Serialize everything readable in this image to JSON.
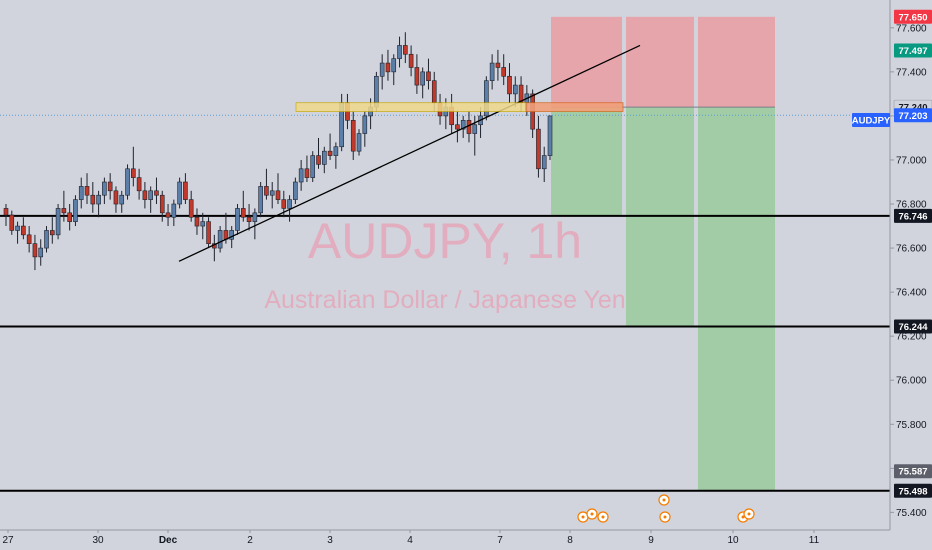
{
  "watermark": {
    "symbol": "AUDJPY, 1h",
    "description": "Australian Dollar / Japanese Yen"
  },
  "symbol_badge": "AUDJPY",
  "colors": {
    "background": "#d1d4dc",
    "up_candle": "#5b7fa8",
    "down_candle": "#c0392b",
    "stop_zone": "#e8a0a4",
    "target_zone": "#9ccb9f",
    "symbol_badge": "#2962ff",
    "current_price_line": "#5b9bd5"
  },
  "chart_data": {
    "type": "candlestick",
    "symbol": "AUDJPY",
    "timeframe": "1h",
    "y_range": [
      75.32,
      77.69
    ],
    "y_ticks": [
      "75.400",
      "75.600",
      "75.800",
      "76.000",
      "76.200",
      "76.400",
      "76.600",
      "76.800",
      "77.000",
      "77.200",
      "77.400",
      "77.600"
    ],
    "x_ticks": [
      "27",
      "30",
      "Dec",
      "2",
      "3",
      "4",
      "7",
      "8",
      "9",
      "10",
      "11"
    ],
    "horizontal_levels": [
      76.746,
      76.244,
      75.498
    ],
    "trendline": {
      "from": {
        "date": "1 Dec",
        "price": 76.54
      },
      "to": {
        "date": "8 Dec",
        "price": 77.52
      }
    },
    "resistance_zone": {
      "price_from": 77.22,
      "price_to": 77.26,
      "from_date": "2 Dec",
      "to_date": "8 Dec"
    },
    "short_positions": [
      {
        "entry": 77.24,
        "stop": 77.65,
        "target": 76.746
      },
      {
        "entry": 77.24,
        "stop": 77.65,
        "target": 76.244
      },
      {
        "entry": 77.24,
        "stop": 77.65,
        "target": 75.498
      }
    ],
    "price_labels": [
      {
        "label": "77.650",
        "price": 77.65,
        "style": "red"
      },
      {
        "label": "77.497",
        "price": 77.497,
        "style": "green"
      },
      {
        "label": "77.240",
        "price": 77.24,
        "style": "plain"
      },
      {
        "label": "77.203",
        "price": 77.203,
        "style": "blue"
      },
      {
        "label": "76.746",
        "price": 76.746,
        "style": "black"
      },
      {
        "label": "76.244",
        "price": 76.244,
        "style": "black"
      },
      {
        "label": "75.587",
        "price": 75.587,
        "style": "grey"
      },
      {
        "label": "75.498",
        "price": 75.498,
        "style": "black"
      }
    ],
    "current_price": 77.203,
    "candles": [
      [
        76.78,
        76.8,
        76.7,
        76.75
      ],
      [
        76.75,
        76.77,
        76.66,
        76.68
      ],
      [
        76.68,
        76.72,
        76.62,
        76.7
      ],
      [
        76.7,
        76.74,
        76.64,
        76.66
      ],
      [
        76.66,
        76.7,
        76.58,
        76.62
      ],
      [
        76.62,
        76.66,
        76.5,
        76.56
      ],
      [
        76.56,
        76.64,
        76.52,
        76.6
      ],
      [
        76.6,
        76.7,
        76.58,
        76.68
      ],
      [
        76.68,
        76.74,
        76.62,
        76.66
      ],
      [
        76.66,
        76.8,
        76.64,
        76.78
      ],
      [
        76.78,
        76.86,
        76.72,
        76.76
      ],
      [
        76.76,
        76.8,
        76.68,
        76.72
      ],
      [
        76.72,
        76.84,
        76.7,
        76.82
      ],
      [
        76.82,
        76.92,
        76.78,
        76.88
      ],
      [
        76.88,
        76.94,
        76.8,
        76.84
      ],
      [
        76.84,
        76.9,
        76.76,
        76.8
      ],
      [
        76.8,
        76.86,
        76.74,
        76.84
      ],
      [
        76.84,
        76.92,
        76.8,
        76.9
      ],
      [
        76.9,
        76.94,
        76.82,
        76.86
      ],
      [
        76.86,
        76.88,
        76.76,
        76.8
      ],
      [
        76.8,
        76.86,
        76.76,
        76.84
      ],
      [
        76.84,
        76.98,
        76.82,
        76.96
      ],
      [
        76.96,
        77.06,
        76.88,
        76.92
      ],
      [
        76.92,
        76.96,
        76.82,
        76.86
      ],
      [
        76.86,
        76.9,
        76.78,
        76.82
      ],
      [
        76.82,
        76.88,
        76.76,
        76.86
      ],
      [
        76.86,
        76.92,
        76.8,
        76.84
      ],
      [
        76.84,
        76.86,
        76.72,
        76.76
      ],
      [
        76.76,
        76.8,
        76.7,
        76.74
      ],
      [
        76.74,
        76.82,
        76.7,
        76.8
      ],
      [
        76.8,
        76.92,
        76.78,
        76.9
      ],
      [
        76.9,
        76.94,
        76.8,
        76.82
      ],
      [
        76.82,
        76.86,
        76.72,
        76.74
      ],
      [
        76.74,
        76.78,
        76.66,
        76.7
      ],
      [
        76.7,
        76.76,
        76.64,
        76.72
      ],
      [
        76.72,
        76.74,
        76.6,
        76.62
      ],
      [
        76.62,
        76.66,
        76.54,
        76.6
      ],
      [
        76.6,
        76.7,
        76.58,
        76.68
      ],
      [
        76.68,
        76.76,
        76.62,
        76.64
      ],
      [
        76.64,
        76.7,
        76.6,
        76.68
      ],
      [
        76.68,
        76.8,
        76.66,
        76.78
      ],
      [
        76.78,
        76.86,
        76.72,
        76.74
      ],
      [
        76.74,
        76.8,
        76.68,
        76.72
      ],
      [
        76.72,
        76.78,
        76.64,
        76.76
      ],
      [
        76.76,
        76.9,
        76.74,
        76.88
      ],
      [
        76.88,
        76.96,
        76.82,
        76.84
      ],
      [
        76.84,
        76.9,
        76.78,
        76.86
      ],
      [
        76.86,
        76.94,
        76.8,
        76.82
      ],
      [
        76.82,
        76.86,
        76.74,
        76.78
      ],
      [
        76.78,
        76.84,
        76.72,
        76.82
      ],
      [
        76.82,
        76.92,
        76.8,
        76.9
      ],
      [
        76.9,
        77.0,
        76.86,
        76.96
      ],
      [
        76.96,
        77.02,
        76.9,
        76.92
      ],
      [
        76.92,
        77.04,
        76.9,
        77.02
      ],
      [
        77.02,
        77.1,
        76.96,
        76.98
      ],
      [
        76.98,
        77.06,
        76.94,
        77.04
      ],
      [
        77.04,
        77.12,
        77.0,
        77.02
      ],
      [
        77.02,
        77.08,
        76.96,
        77.06
      ],
      [
        77.06,
        77.3,
        77.04,
        77.26
      ],
      [
        77.26,
        77.3,
        77.14,
        77.18
      ],
      [
        77.18,
        77.22,
        77.0,
        77.04
      ],
      [
        77.04,
        77.14,
        77.02,
        77.12
      ],
      [
        77.12,
        77.22,
        77.06,
        77.2
      ],
      [
        77.2,
        77.28,
        77.14,
        77.24
      ],
      [
        77.24,
        77.4,
        77.22,
        77.38
      ],
      [
        77.38,
        77.48,
        77.32,
        77.44
      ],
      [
        77.44,
        77.5,
        77.36,
        77.4
      ],
      [
        77.4,
        77.48,
        77.34,
        77.46
      ],
      [
        77.46,
        77.56,
        77.42,
        77.52
      ],
      [
        77.52,
        77.58,
        77.44,
        77.48
      ],
      [
        77.48,
        77.52,
        77.38,
        77.42
      ],
      [
        77.42,
        77.48,
        77.3,
        77.34
      ],
      [
        77.34,
        77.42,
        77.28,
        77.4
      ],
      [
        77.4,
        77.46,
        77.32,
        77.36
      ],
      [
        77.36,
        77.4,
        77.22,
        77.26
      ],
      [
        77.26,
        77.3,
        77.16,
        77.2
      ],
      [
        77.2,
        77.28,
        77.14,
        77.24
      ],
      [
        77.24,
        77.3,
        77.12,
        77.16
      ],
      [
        77.16,
        77.22,
        77.08,
        77.14
      ],
      [
        77.14,
        77.2,
        77.1,
        77.18
      ],
      [
        77.18,
        77.22,
        77.08,
        77.12
      ],
      [
        77.12,
        77.2,
        77.02,
        77.16
      ],
      [
        77.16,
        77.24,
        77.1,
        77.2
      ],
      [
        77.2,
        77.38,
        77.18,
        77.36
      ],
      [
        77.36,
        77.48,
        77.32,
        77.44
      ],
      [
        77.44,
        77.5,
        77.36,
        77.42
      ],
      [
        77.42,
        77.48,
        77.34,
        77.38
      ],
      [
        77.38,
        77.44,
        77.26,
        77.3
      ],
      [
        77.3,
        77.38,
        77.24,
        77.34
      ],
      [
        77.34,
        77.38,
        77.22,
        77.26
      ],
      [
        77.26,
        77.34,
        77.2,
        77.3
      ],
      [
        77.3,
        77.32,
        77.1,
        77.14
      ],
      [
        77.14,
        77.2,
        76.92,
        76.96
      ],
      [
        76.96,
        77.06,
        76.9,
        77.02
      ],
      [
        77.02,
        77.2,
        77.0,
        77.2
      ]
    ]
  }
}
